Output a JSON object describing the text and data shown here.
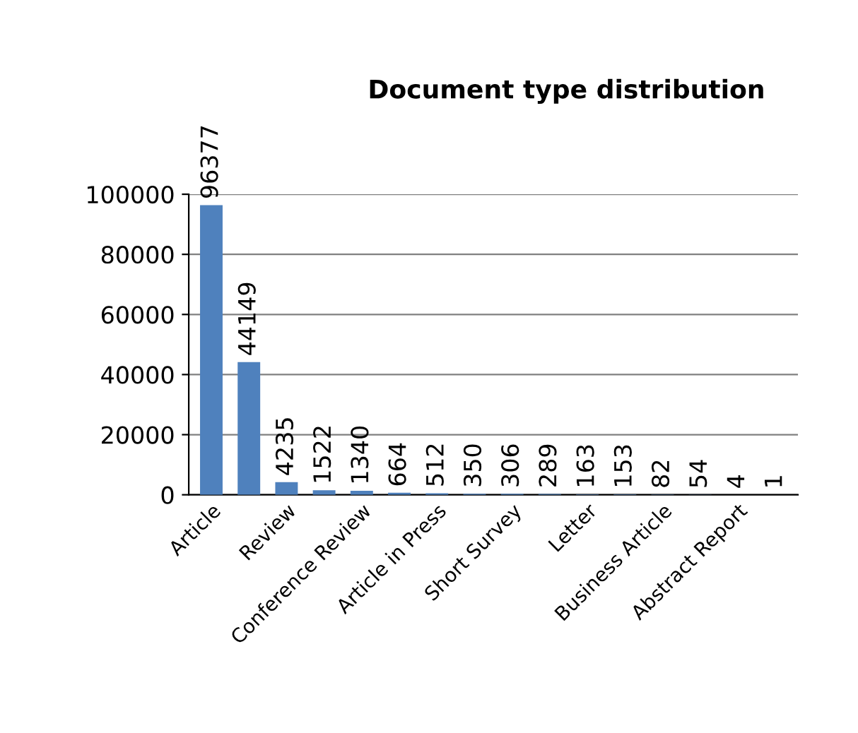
{
  "chart_data": {
    "type": "bar",
    "title": "Document type distribution",
    "categories": [
      "Article",
      null,
      "Review",
      null,
      "Conference Review",
      null,
      "Article in Press",
      null,
      "Short Survey",
      null,
      "Letter",
      null,
      "Business Article",
      null,
      "Abstract Report",
      null
    ],
    "values": [
      96377,
      44149,
      4235,
      1522,
      1340,
      664,
      512,
      350,
      306,
      289,
      163,
      153,
      82,
      54,
      4,
      1
    ],
    "color": "#4f81bd",
    "ylim": [
      0,
      100000
    ],
    "yticks": [
      0,
      20000,
      40000,
      60000,
      80000,
      100000
    ],
    "grid": "y",
    "data_labels": true
  }
}
